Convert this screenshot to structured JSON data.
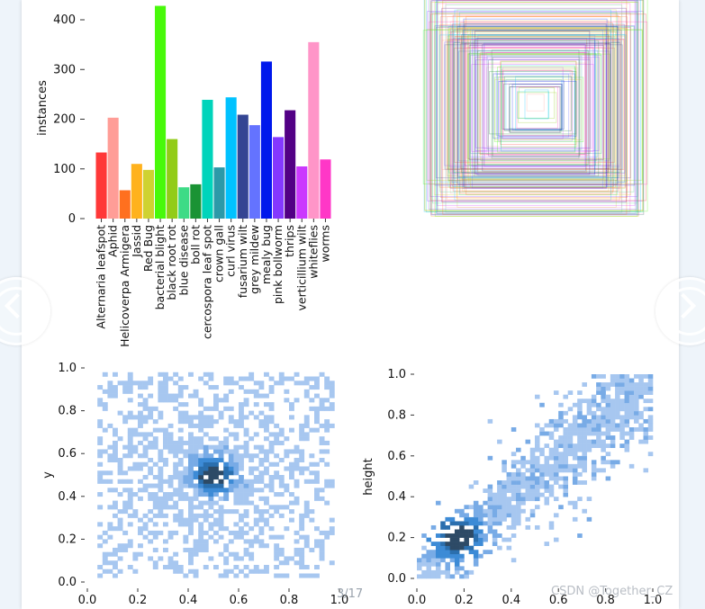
{
  "viewer": {
    "page_indicator": "3/17",
    "watermark": "CSDN @Together_CZ"
  },
  "chart_data": [
    {
      "type": "bar",
      "ylabel": "instances",
      "ylim": [
        0,
        440
      ],
      "yticks": [
        0,
        100,
        200,
        300,
        400
      ],
      "categories": [
        "Alternaria leafspot",
        "Aphid",
        "Helicoverpa Armigera",
        "Jassid",
        "Red Bug",
        "bacterial blight",
        "black root rot",
        "blue disease",
        "boll rot",
        "cercospora leaf spot",
        "crown gall",
        "curl virus",
        "fusarium wilt",
        "grey mildew",
        "mealy bug",
        "pink bollworm",
        "thrips",
        "verticillium wilt",
        "whiteflies",
        "worms"
      ],
      "values": [
        133,
        203,
        57,
        110,
        98,
        428,
        160,
        63,
        69,
        239,
        103,
        244,
        209,
        188,
        316,
        164,
        218,
        105,
        355,
        119
      ],
      "colors": [
        "#ff3838",
        "#ff9d97",
        "#ff701f",
        "#ffb21d",
        "#cfd231",
        "#48f90a",
        "#92cc17",
        "#3ddb86",
        "#1a9334",
        "#00d4bb",
        "#2c99a8",
        "#00c2ff",
        "#344593",
        "#6473ff",
        "#0018ec",
        "#8438ff",
        "#520085",
        "#cb38ff",
        "#ff95c8",
        "#ff37c7"
      ]
    },
    {
      "type": "box-overlay",
      "description_hidden": true
    },
    {
      "type": "heatmap",
      "xlabel": "",
      "ylabel": "y",
      "xlim": [
        0,
        1
      ],
      "ylim": [
        0,
        1
      ],
      "xticks": [
        0.0,
        0.2,
        0.4,
        0.6,
        0.8,
        1.0
      ],
      "yticks": [
        0.0,
        0.2,
        0.4,
        0.6,
        0.8,
        1.0
      ],
      "tick_labels": [
        "0.0",
        "0.2",
        "0.4",
        "0.6",
        "0.8",
        "1.0"
      ],
      "center": [
        0.5,
        0.5
      ]
    },
    {
      "type": "heatmap",
      "xlabel": "",
      "ylabel": "height",
      "xlim": [
        0,
        1
      ],
      "ylim": [
        0,
        1
      ],
      "xticks": [
        0.0,
        0.2,
        0.4,
        0.6,
        0.8,
        1.0
      ],
      "yticks": [
        0.0,
        0.2,
        0.4,
        0.6,
        0.8,
        1.0
      ],
      "tick_labels": [
        "0.0",
        "0.2",
        "0.4",
        "0.6",
        "0.8",
        "1.0"
      ],
      "trend": "diagonal"
    }
  ]
}
